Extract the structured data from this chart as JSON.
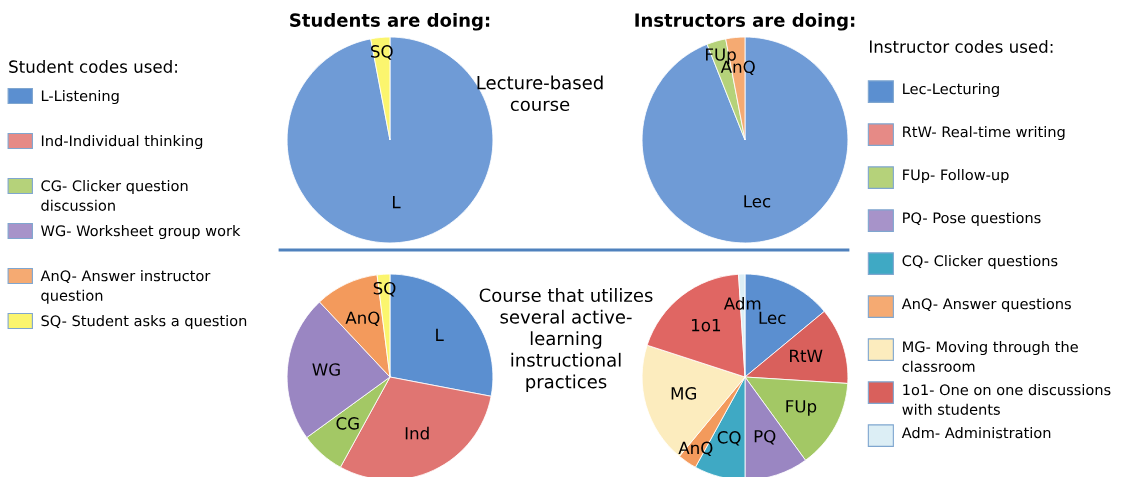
{
  "chart_data": [
    {
      "type": "other",
      "title": "Student codes used:",
      "categories": [
        "L-Listening",
        "Ind-Individual thinking",
        "CG- Clicker question\ndiscussion",
        "WG- Worksheet group work",
        "AnQ- Answer instructor\nquestion",
        "SQ- Student asks a question"
      ],
      "colors": [
        "#5b8fd0",
        "#e68a86",
        "#b5d27a",
        "#a793c9",
        "#f5aa72",
        "#fbf56e"
      ]
    },
    {
      "type": "pie",
      "title": "Students are doing:",
      "annotations": [
        "Lecture-based\ncourse"
      ],
      "categories": [
        "L",
        "SQ"
      ],
      "values": [
        97,
        3
      ],
      "colors": [
        "#6f9bd6",
        "#fbf56e"
      ]
    },
    {
      "type": "pie",
      "title": "Instructors are doing:",
      "categories": [
        "Lec",
        "FUp",
        "AnQ"
      ],
      "values": [
        94,
        3,
        3
      ],
      "colors": [
        "#6f9bd6",
        "#b5d27a",
        "#f5aa72"
      ]
    },
    {
      "type": "other",
      "title": "Instructor codes used:",
      "categories": [
        "Lec-Lecturing",
        "RtW- Real-time writing",
        "FUp- Follow-up",
        "PQ- Pose questions",
        "CQ- Clicker questions",
        "AnQ- Answer questions",
        "MG- Moving through the\nclassroom",
        "1o1- One on one discussions\nwith students",
        "Adm- Administration"
      ],
      "colors": [
        "#5b8fd0",
        "#e68a86",
        "#b5d27a",
        "#a793c9",
        "#3fa9c4",
        "#f5aa72",
        "#fcecbe",
        "#d9605c",
        "#dceef5"
      ]
    },
    {
      "type": "pie",
      "annotations": [
        "Course that utilizes\nseveral active-\nlearning\ninstructional\npractices"
      ],
      "categories": [
        "L",
        "Ind",
        "CG",
        "WG",
        "AnQ",
        "SQ"
      ],
      "values": [
        28,
        30,
        7,
        23,
        10,
        2
      ],
      "colors": [
        "#5b8fd0",
        "#e07572",
        "#a3c865",
        "#9a86c2",
        "#f39a5c",
        "#fbf56e"
      ]
    },
    {
      "type": "pie",
      "categories": [
        "Lec",
        "RtW",
        "FUp",
        "PQ",
        "CQ",
        "AnQ",
        "MG",
        "1o1",
        "Adm"
      ],
      "values": [
        14,
        12,
        14,
        10,
        8,
        3,
        19,
        19,
        1
      ],
      "colors": [
        "#5b8fd0",
        "#d9605c",
        "#a3c865",
        "#9a86c2",
        "#3fa9c4",
        "#f39a5c",
        "#fcecbe",
        "#e06663",
        "#dceef5"
      ]
    }
  ]
}
